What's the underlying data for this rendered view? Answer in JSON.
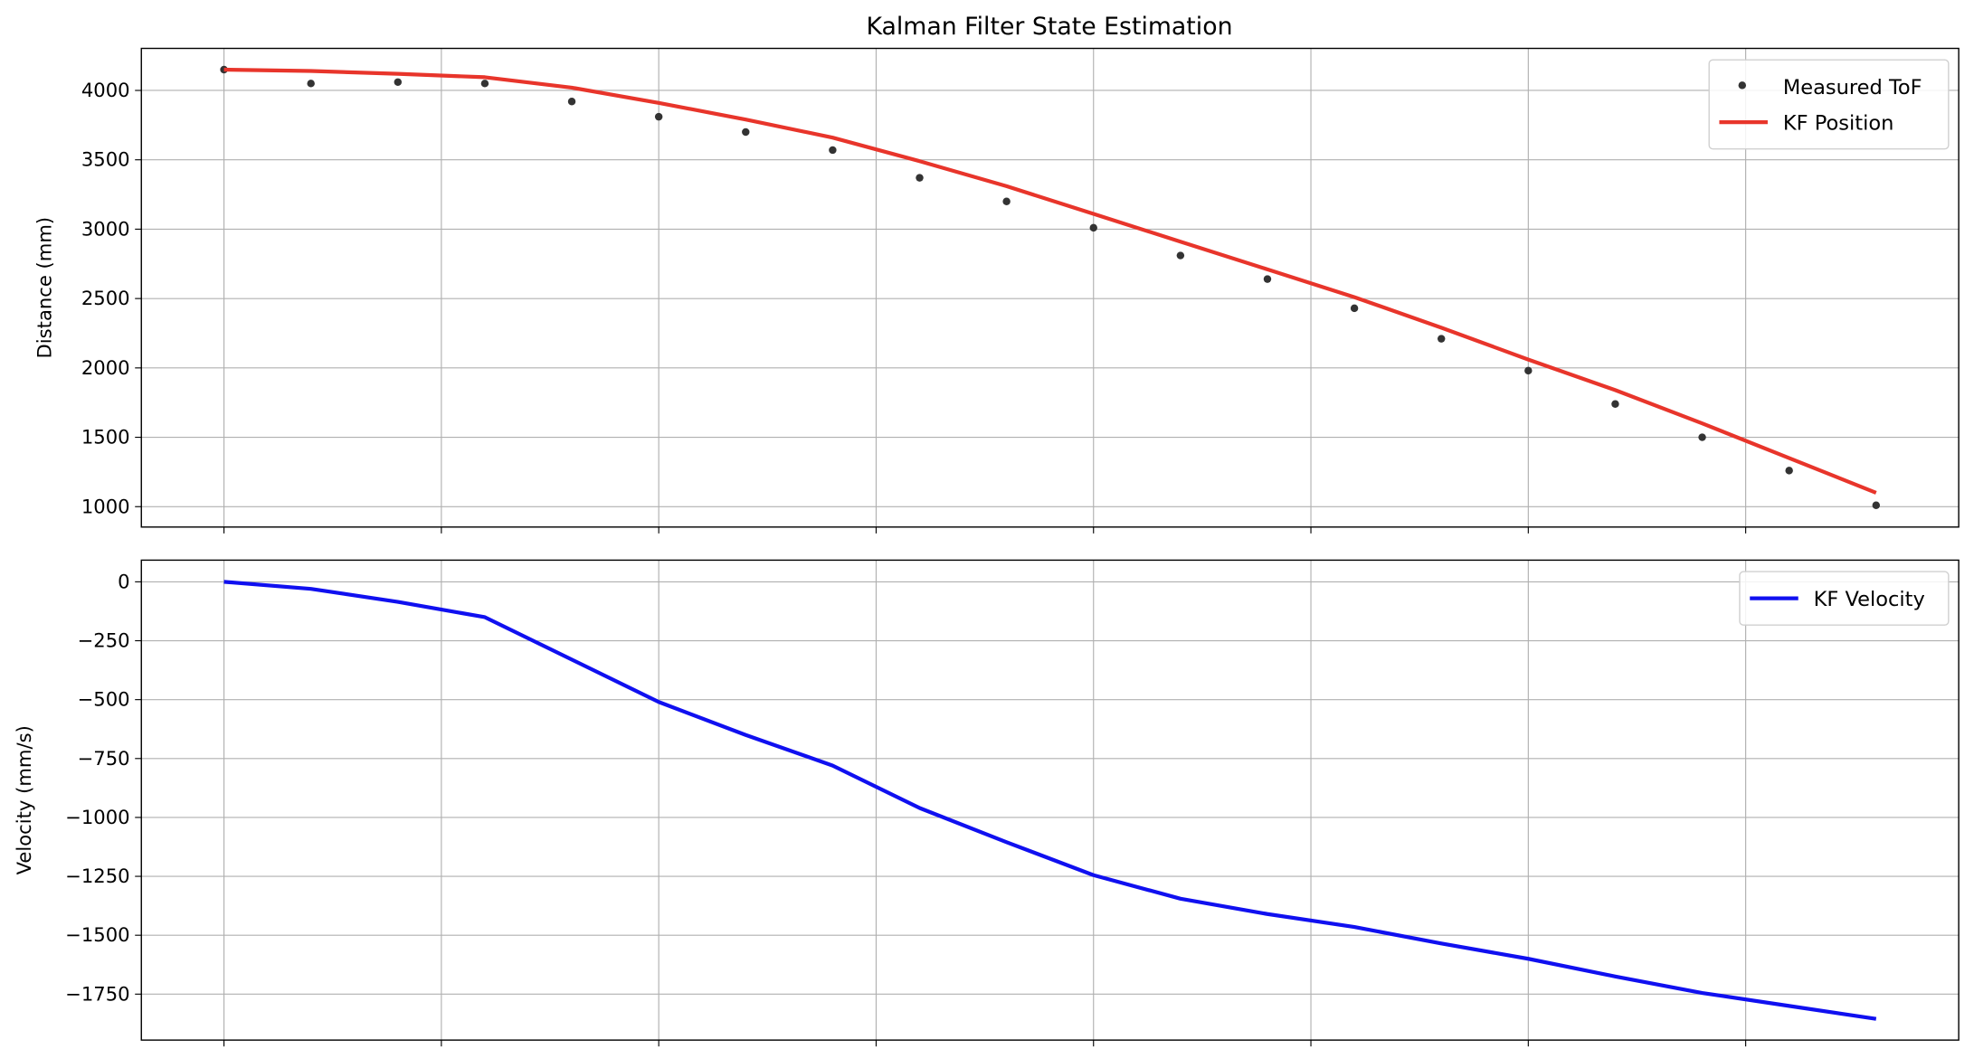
{
  "chart_data": [
    {
      "type": "line",
      "title": "Kalman Filter State Estimation",
      "xlabel": "",
      "ylabel": "Distance (mm)",
      "x": [
        0,
        1,
        2,
        3,
        4,
        5,
        6,
        7,
        8,
        9,
        10,
        11,
        12,
        13,
        14,
        15,
        16,
        17,
        18,
        19
      ],
      "xlim": [
        -0.95,
        19.95
      ],
      "xticks": [
        0,
        2.5,
        5,
        7.5,
        10,
        12.5,
        15,
        17.5
      ],
      "ylim": [
        853,
        4303
      ],
      "yticks": [
        1000,
        1500,
        2000,
        2500,
        3000,
        3500,
        4000
      ],
      "ytick_labels": [
        "1000",
        "1500",
        "2000",
        "2500",
        "3000",
        "3500",
        "4000"
      ],
      "grid": true,
      "legend_position": "top-right",
      "series": [
        {
          "name": "Measured ToF",
          "style": "scatter",
          "color": "#333333",
          "values": [
            4150,
            4050,
            4060,
            4050,
            3920,
            3810,
            3700,
            3570,
            3370,
            3200,
            3010,
            2810,
            2640,
            2430,
            2210,
            1980,
            1740,
            1500,
            1260,
            1010
          ]
        },
        {
          "name": "KF Position",
          "style": "line",
          "color": "#e8352b",
          "values": [
            4150,
            4140,
            4120,
            4095,
            4020,
            3910,
            3790,
            3660,
            3490,
            3310,
            3110,
            2910,
            2710,
            2510,
            2290,
            2060,
            1840,
            1600,
            1350,
            1100
          ]
        }
      ]
    },
    {
      "type": "line",
      "title": "",
      "xlabel": "",
      "ylabel": "Velocity (mm/s)",
      "x": [
        0,
        1,
        2,
        3,
        4,
        5,
        6,
        7,
        8,
        9,
        10,
        11,
        12,
        13,
        14,
        15,
        16,
        17,
        18,
        19
      ],
      "xlim": [
        -0.95,
        19.95
      ],
      "xticks": [
        0,
        2.5,
        5,
        7.5,
        10,
        12.5,
        15,
        17.5
      ],
      "ylim": [
        -1945,
        92
      ],
      "yticks": [
        0,
        -250,
        -500,
        -750,
        -1000,
        -1250,
        -1500,
        -1750
      ],
      "ytick_labels": [
        "0",
        "−250",
        "−500",
        "−750",
        "−1000",
        "−1250",
        "−1500",
        "−1750"
      ],
      "grid": true,
      "legend_position": "top-right",
      "series": [
        {
          "name": "KF Velocity",
          "style": "line",
          "color": "#1010f0",
          "values": [
            0,
            -30,
            -85,
            -150,
            -330,
            -510,
            -650,
            -780,
            -960,
            -1105,
            -1245,
            -1345,
            -1410,
            -1465,
            -1535,
            -1600,
            -1675,
            -1745,
            -1800,
            -1855
          ]
        }
      ]
    }
  ]
}
